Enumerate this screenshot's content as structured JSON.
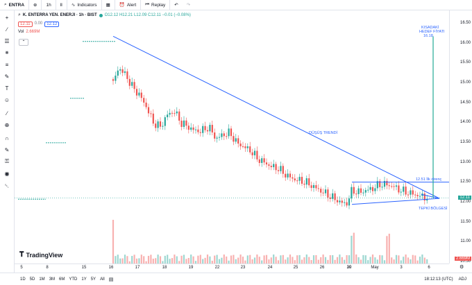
{
  "toolbar": {
    "symbol": "ENTRA",
    "timeframe": "1h",
    "indicators_label": "Indicators",
    "alert_label": "Alert",
    "replay_label": "Replay"
  },
  "legend": {
    "title": "K. ENTERRA YEN. ENERJI · 1h · BIST",
    "ohlc": "O12.12 H12.21 L12.09 C12.11 −0.01 (−0.08%)",
    "bid": "12.11",
    "spread": "0.00",
    "ask": "12.12",
    "vol_label": "Vol",
    "vol_value": "2.669M"
  },
  "chart_data": {
    "type": "candlestick",
    "ylim": [
      10.7,
      16.6
    ],
    "yticks": [
      "16.50",
      "16.00",
      "15.50",
      "15.00",
      "14.50",
      "14.00",
      "13.50",
      "13.00",
      "12.50",
      "12.00",
      "11.50",
      "11.00",
      "10.50"
    ],
    "xticks": [
      "5",
      "8",
      "15",
      "16",
      "17",
      "18",
      "19",
      "22",
      "23",
      "24",
      "25",
      "26",
      "29",
      "30",
      "May",
      "3",
      "6"
    ],
    "last_price": "12.11",
    "last_volume": "2.669M",
    "annotations": {
      "trend": "DÜŞÜŞ TRENDİ",
      "target_line1": "KISADAKİ",
      "target_line2": "HEDEF FİYATI",
      "target_value": "16.18",
      "resistance": "12.51  İlk direnç",
      "support": "TEPKİ BÖLGESİ"
    }
  },
  "watermark": "TradingView",
  "bottom": {
    "timeframes": [
      "1D",
      "5D",
      "1M",
      "3M",
      "6M",
      "YTD",
      "1Y",
      "5Y",
      "All"
    ],
    "clock": "18:12:13 (UTC)",
    "adj": "ADJ"
  },
  "colors": {
    "up": "#26a69a",
    "down": "#ef5350",
    "trendline": "#2962ff",
    "target": "#22ab94"
  }
}
